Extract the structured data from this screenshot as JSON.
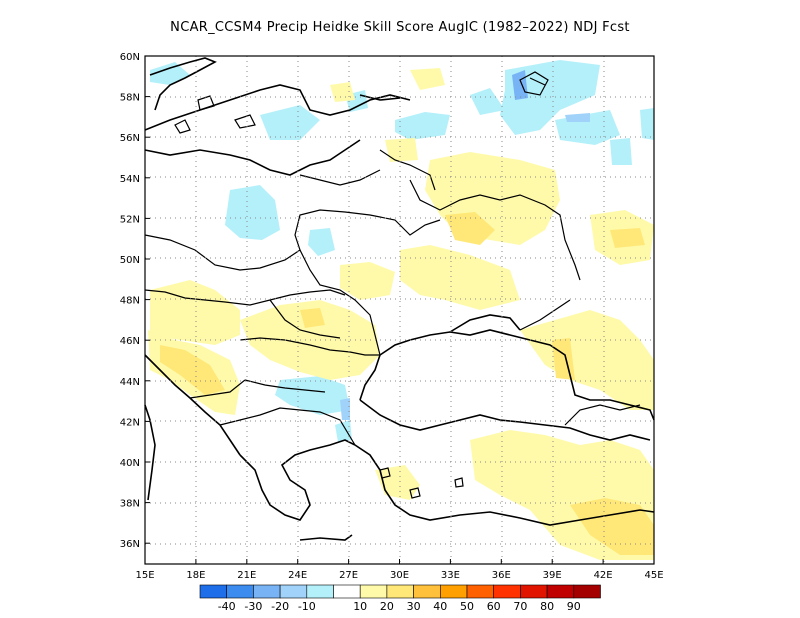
{
  "title": "NCAR_CCSM4 Precip Heidke Skill Score AugIC (1982–2022) NDJ Fcst",
  "map": {
    "lat_labels": [
      "60N",
      "58N",
      "56N",
      "54N",
      "52N",
      "50N",
      "48N",
      "46N",
      "44N",
      "42N",
      "40N",
      "38N",
      "36N"
    ],
    "lon_labels": [
      "15E",
      "18E",
      "21E",
      "24E",
      "27E",
      "30E",
      "33E",
      "36E",
      "39E",
      "42E",
      "45E"
    ],
    "land_color": "#ffffff",
    "coast_color": "#000000",
    "grid_color": "#888888"
  },
  "colorbar": {
    "labels": [
      "-40",
      "-30",
      "-20",
      "-10",
      "10",
      "20",
      "30",
      "40",
      "50",
      "60",
      "70",
      "80",
      "90"
    ],
    "colors": [
      "#1e6eea",
      "#3c8cf0",
      "#78b4f5",
      "#a0d2fa",
      "#b4f0fa",
      "#ffffff",
      "#fffaaa",
      "#ffe878",
      "#ffc03c",
      "#ffa000",
      "#ff6000",
      "#ff3200",
      "#e11400",
      "#c00000",
      "#a50000"
    ]
  },
  "patches": [
    {
      "level": "-10",
      "color": "#b4f0fa"
    },
    {
      "level": "10",
      "color": "#fffaaa"
    },
    {
      "level": "20",
      "color": "#ffe878"
    },
    {
      "level": "-20",
      "color": "#a0d2fa"
    },
    {
      "level": "-30",
      "color": "#78b4f5"
    },
    {
      "level": "-40",
      "color": "#3c8cf0"
    }
  ]
}
